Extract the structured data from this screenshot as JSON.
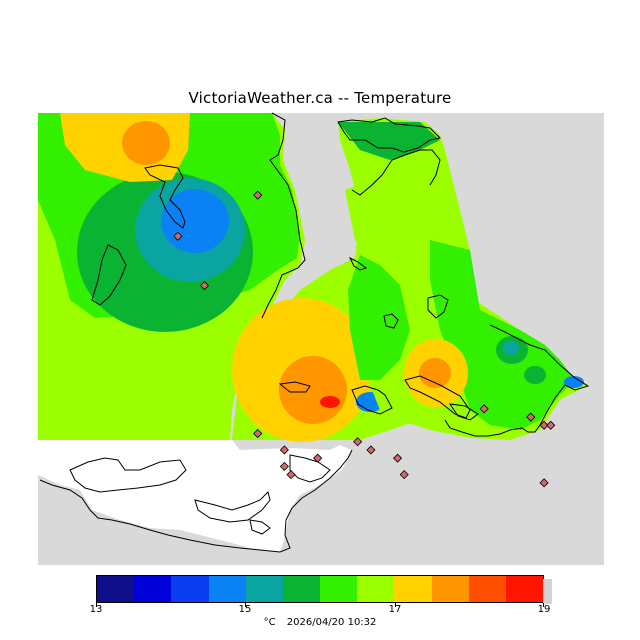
{
  "title": "VictoriaWeather.ca -- Temperature",
  "colors": {
    "land_gray": "#d9d9d9",
    "water_white": "#ffffff",
    "station_marker": "#d2696e"
  },
  "colorbar": {
    "colors": [
      "#0f0f8c",
      "#0000d9",
      "#0a3cf0",
      "#0a82f5",
      "#0aa5a0",
      "#0ab432",
      "#32f000",
      "#9bff00",
      "#ffd200",
      "#ff9600",
      "#ff5000",
      "#ff1400"
    ],
    "ticks": [
      "13",
      "15",
      "17",
      "19"
    ]
  },
  "footer": {
    "unit": "°C",
    "timestamp": "2026/04/20 10:32"
  },
  "stations": [
    {
      "lon": -123.54,
      "lat": 48.7
    },
    {
      "lon": -123.5,
      "lat": 48.64
    },
    {
      "lon": -123.42,
      "lat": 48.46
    },
    {
      "lon": -123.38,
      "lat": 48.44
    },
    {
      "lon": -123.38,
      "lat": 48.42
    },
    {
      "lon": -123.37,
      "lat": 48.41
    },
    {
      "lon": -123.33,
      "lat": 48.43
    },
    {
      "lon": -123.27,
      "lat": 48.45
    },
    {
      "lon": -123.25,
      "lat": 48.44
    },
    {
      "lon": -123.21,
      "lat": 48.43
    },
    {
      "lon": -123.2,
      "lat": 48.41
    },
    {
      "lon": -123.08,
      "lat": 48.49
    },
    {
      "lon": -123.01,
      "lat": 48.48
    },
    {
      "lon": -122.99,
      "lat": 48.47
    },
    {
      "lon": -122.98,
      "lat": 48.47
    },
    {
      "lon": -122.99,
      "lat": 48.4
    },
    {
      "lon": -123.42,
      "lat": 48.75
    }
  ]
}
